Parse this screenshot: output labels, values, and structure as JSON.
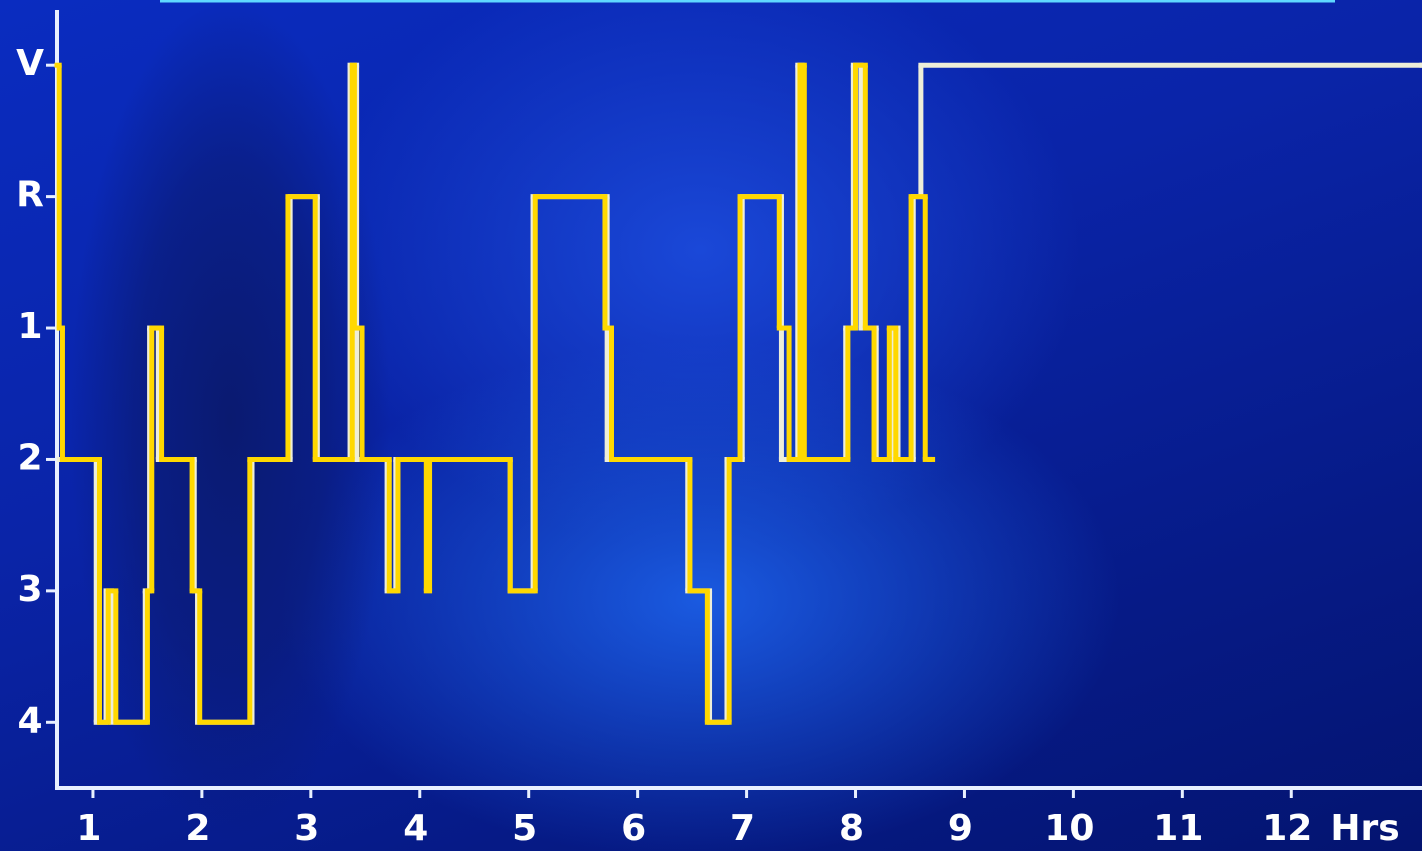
{
  "chart_data": {
    "type": "line",
    "step": true,
    "xlabel": "Hrs",
    "xlim": [
      0.67,
      13.2
    ],
    "xticks": [
      1,
      2,
      3,
      4,
      5,
      6,
      7,
      8,
      9,
      10,
      11,
      12
    ],
    "ylim": [
      4.5,
      -1.42
    ],
    "yticks": [
      {
        "value": -1,
        "label": "V"
      },
      {
        "value": 0,
        "label": "R"
      },
      1,
      2,
      3,
      4
    ],
    "series": [
      {
        "color": "#eeeed8",
        "x": [
          0.69,
          1.03,
          1.12,
          1.17,
          1.48,
          1.52,
          1.6,
          1.93,
          1.96,
          2.46,
          2.81,
          3.06,
          3.36,
          3.42,
          3.7,
          3.78,
          4.83,
          5.04,
          5.72,
          6.46,
          6.66,
          6.82,
          6.96,
          7.32,
          7.47,
          7.51,
          7.91,
          7.98,
          8.05,
          8.19,
          8.33,
          8.39,
          8.53,
          8.6,
          13.2
        ],
        "values": [
          2,
          4,
          3,
          4,
          3,
          1,
          2,
          3,
          4,
          2,
          0,
          2,
          -1,
          2,
          3,
          2,
          3,
          0,
          2,
          3,
          4,
          2,
          0,
          2,
          -1,
          2,
          1,
          -1,
          1,
          2,
          1,
          2,
          0,
          -1,
          -1
        ]
      },
      {
        "color": "#ffd800",
        "x": [
          0.67,
          0.69,
          0.72,
          1.06,
          1.14,
          1.21,
          1.5,
          1.54,
          1.63,
          1.91,
          1.98,
          2.44,
          2.79,
          3.04,
          3.38,
          3.4,
          3.47,
          3.72,
          3.8,
          4.06,
          4.09,
          4.83,
          5.06,
          5.7,
          5.76,
          6.48,
          6.64,
          6.84,
          6.94,
          7.3,
          7.39,
          7.49,
          7.53,
          7.93,
          8.0,
          8.09,
          8.17,
          8.31,
          8.37,
          8.51,
          8.64,
          8.68
        ],
        "values": [
          -1,
          1,
          2,
          4,
          3,
          4,
          3,
          1,
          2,
          3,
          4,
          2,
          0,
          2,
          -1,
          1,
          2,
          3,
          2,
          3,
          2,
          3,
          0,
          1,
          2,
          3,
          4,
          2,
          0,
          1,
          2,
          -1,
          2,
          1,
          -1,
          1,
          2,
          1,
          2,
          0,
          2,
          2
        ]
      }
    ]
  }
}
